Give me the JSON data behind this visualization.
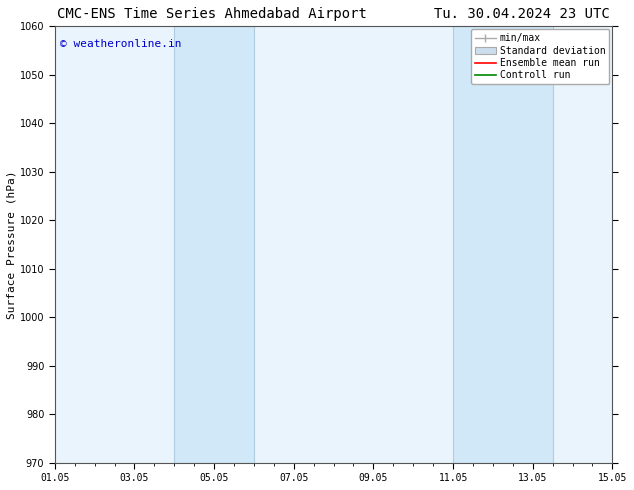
{
  "title_left": "CMC-ENS Time Series Ahmedabad Airport",
  "title_right": "Tu. 30.04.2024 23 UTC",
  "ylabel": "Surface Pressure (hPa)",
  "xlim": [
    0,
    14
  ],
  "ylim": [
    970,
    1060
  ],
  "yticks": [
    970,
    980,
    990,
    1000,
    1010,
    1020,
    1030,
    1040,
    1050,
    1060
  ],
  "xtick_positions": [
    0,
    2,
    4,
    6,
    8,
    10,
    12,
    14
  ],
  "xtick_labels": [
    "01.05",
    "03.05",
    "05.05",
    "07.05",
    "09.05",
    "11.05",
    "13.05",
    "15.05"
  ],
  "shaded_regions": [
    {
      "x_start": 3,
      "x_end": 5,
      "color": "#d0e8f8"
    },
    {
      "x_start": 10,
      "x_end": 12.5,
      "color": "#d0e8f8"
    }
  ],
  "shaded_border_color": "#b0cce0",
  "plot_bg_color": "#eaf4fc",
  "bg_color": "#ffffff",
  "watermark_text": "© weatheronline.in",
  "watermark_color": "#0000cc",
  "watermark_fontsize": 8,
  "title_fontsize": 10,
  "axis_label_fontsize": 8,
  "tick_fontsize": 7,
  "legend_fontsize": 7,
  "minmax_color": "#aaaaaa",
  "std_face_color": "#ccdded",
  "std_edge_color": "#aaaaaa",
  "ensemble_color": "#ff0000",
  "control_color": "#008800",
  "border_color": "#555555"
}
